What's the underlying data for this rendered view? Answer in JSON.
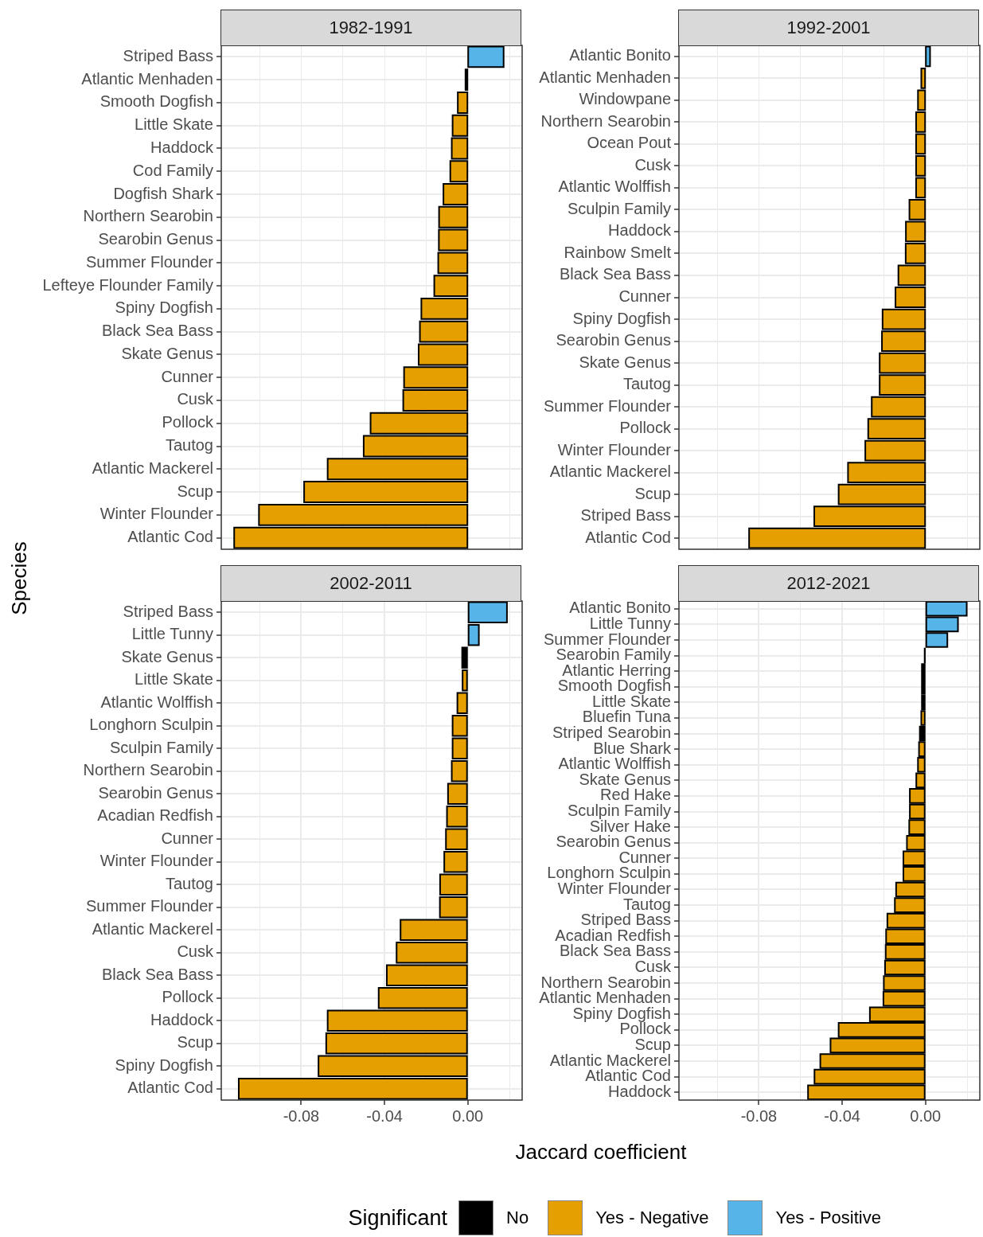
{
  "chart_data": [
    {
      "type": "bar",
      "orientation": "horizontal",
      "title": "1982-1991",
      "ylabel": "Species",
      "grid": true,
      "tick_labels": "y",
      "xlim": [
        -0.1184,
        0.0261
      ],
      "xticks": [
        {
          "value": -0.1,
          "label": null
        },
        {
          "value": -0.08,
          "label": null
        },
        {
          "value": -0.06,
          "label": null
        },
        {
          "value": -0.04,
          "label": null
        },
        {
          "value": -0.02,
          "label": null
        },
        {
          "value": 0,
          "label": null
        },
        {
          "value": 0.02,
          "label": null
        }
      ],
      "categories": [
        "Striped Bass",
        "Atlantic Menhaden",
        "Smooth Dogfish",
        "Little Skate",
        "Haddock",
        "Cod Family",
        "Dogfish Shark",
        "Northern Searobin",
        "Searobin Genus",
        "Summer Flounder",
        "Lefteye Flounder Family",
        "Spiny Dogfish",
        "Black Sea Bass",
        "Skate Genus",
        "Cunner",
        "Cusk",
        "Pollock",
        "Tautog",
        "Atlantic Mackerel",
        "Scup",
        "Winter Flounder",
        "Atlantic Cod"
      ],
      "series": [
        {
          "color": "#000000",
          "values": [
            null,
            -0.0011,
            null,
            null,
            null,
            null,
            null,
            null,
            null,
            null,
            null,
            null,
            null,
            null,
            null,
            null,
            null,
            null,
            null,
            null,
            null,
            null
          ]
        },
        {
          "color": "#e69f00",
          "values": [
            null,
            null,
            -0.0048,
            -0.0073,
            -0.0077,
            -0.0084,
            -0.0117,
            -0.0138,
            -0.0139,
            -0.0142,
            -0.0161,
            -0.0223,
            -0.023,
            -0.0236,
            -0.0306,
            -0.031,
            -0.0467,
            -0.05,
            -0.0673,
            -0.0786,
            -0.1003,
            -0.1122
          ]
        },
        {
          "color": "#56b4e9",
          "values": [
            0.0172,
            null,
            null,
            null,
            null,
            null,
            null,
            null,
            null,
            null,
            null,
            null,
            null,
            null,
            null,
            null,
            null,
            null,
            null,
            null,
            null,
            null
          ]
        }
      ]
    },
    {
      "type": "bar",
      "orientation": "horizontal",
      "title": "1992-2001",
      "grid": true,
      "tick_labels": "y",
      "xlim": [
        -0.1184,
        0.0261
      ],
      "xticks": [
        {
          "value": -0.1,
          "label": null
        },
        {
          "value": -0.08,
          "label": null
        },
        {
          "value": -0.06,
          "label": null
        },
        {
          "value": -0.04,
          "label": null
        },
        {
          "value": -0.02,
          "label": null
        },
        {
          "value": 0,
          "label": null
        },
        {
          "value": 0.02,
          "label": null
        }
      ],
      "categories": [
        "Atlantic Bonito",
        "Atlantic Menhaden",
        "Windowpane",
        "Northern Searobin",
        "Ocean Pout",
        "Cusk",
        "Atlantic Wolffish",
        "Sculpin Family",
        "Haddock",
        "Rainbow Smelt",
        "Black Sea Bass",
        "Cunner",
        "Spiny Dogfish",
        "Searobin Genus",
        "Skate Genus",
        "Tautog",
        "Summer Flounder",
        "Pollock",
        "Winter Flounder",
        "Atlantic Mackerel",
        "Scup",
        "Striped Bass",
        "Atlantic Cod"
      ],
      "series": [
        {
          "color": "#e69f00",
          "values": [
            null,
            -0.002,
            -0.0036,
            -0.0045,
            -0.0045,
            -0.0045,
            -0.0045,
            -0.0077,
            -0.0094,
            -0.0095,
            -0.013,
            -0.0144,
            -0.0206,
            -0.0209,
            -0.022,
            -0.022,
            -0.0258,
            -0.0275,
            -0.0289,
            -0.0372,
            -0.0417,
            -0.0534,
            -0.0847
          ]
        },
        {
          "color": "#56b4e9",
          "values": [
            0.0022,
            null,
            null,
            null,
            null,
            null,
            null,
            null,
            null,
            null,
            null,
            null,
            null,
            null,
            null,
            null,
            null,
            null,
            null,
            null,
            null,
            null,
            null
          ]
        }
      ]
    },
    {
      "type": "bar",
      "orientation": "horizontal",
      "title": "2002-2011",
      "grid": true,
      "xlim": [
        -0.1184,
        0.0261
      ],
      "xticks": [
        {
          "value": -0.1,
          "label": null
        },
        {
          "value": -0.08,
          "label": "-0.08"
        },
        {
          "value": -0.06,
          "label": null
        },
        {
          "value": -0.04,
          "label": "-0.04"
        },
        {
          "value": -0.02,
          "label": null
        },
        {
          "value": 0,
          "label": "0.00"
        },
        {
          "value": 0.02,
          "label": null
        }
      ],
      "categories": [
        "Striped Bass",
        "Little Tunny",
        "Skate Genus",
        "Little Skate",
        "Atlantic Wolffish",
        "Longhorn Sculpin",
        "Sculpin Family",
        "Northern Searobin",
        "Searobin Genus",
        "Acadian Redfish",
        "Cunner",
        "Winter Flounder",
        "Tautog",
        "Summer Flounder",
        "Atlantic Mackerel",
        "Cusk",
        "Black Sea Bass",
        "Pollock",
        "Haddock",
        "Scup",
        "Spiny Dogfish",
        "Atlantic Cod"
      ],
      "series": [
        {
          "color": "#000000",
          "values": [
            null,
            null,
            -0.0027,
            null,
            null,
            null,
            null,
            null,
            null,
            null,
            null,
            null,
            null,
            null,
            null,
            null,
            null,
            null,
            null,
            null,
            null,
            null
          ]
        },
        {
          "color": "#e69f00",
          "values": [
            null,
            null,
            null,
            -0.0025,
            -0.005,
            -0.0073,
            -0.0073,
            -0.0077,
            -0.0095,
            -0.01,
            -0.0105,
            -0.0113,
            -0.0133,
            -0.0134,
            -0.0323,
            -0.0342,
            -0.0389,
            -0.0428,
            -0.0673,
            -0.068,
            -0.0717,
            -0.11
          ]
        },
        {
          "color": "#56b4e9",
          "values": [
            0.0188,
            0.0053,
            null,
            null,
            null,
            null,
            null,
            null,
            null,
            null,
            null,
            null,
            null,
            null,
            null,
            null,
            null,
            null,
            null,
            null,
            null,
            null
          ]
        }
      ]
    },
    {
      "type": "bar",
      "orientation": "horizontal",
      "title": "2012-2021",
      "xlabel": "Jaccard coefficient",
      "legend": "bottom",
      "legend_title": "Significant",
      "grid": true,
      "xlim": [
        -0.1184,
        0.0261
      ],
      "xticks": [
        {
          "value": -0.1,
          "label": null
        },
        {
          "value": -0.08,
          "label": "-0.08"
        },
        {
          "value": -0.06,
          "label": null
        },
        {
          "value": -0.04,
          "label": "-0.04"
        },
        {
          "value": -0.02,
          "label": null
        },
        {
          "value": 0,
          "label": "0.00"
        },
        {
          "value": 0.02,
          "label": null
        }
      ],
      "categories": [
        "Atlantic Bonito",
        "Little Tunny",
        "Summer Flounder",
        "Searobin Family",
        "Atlantic Herring",
        "Smooth Dogfish",
        "Little Skate",
        "Bluefin Tuna",
        "Striped Searobin",
        "Blue Shark",
        "Atlantic Wolffish",
        "Skate Genus",
        "Red Hake",
        "Sculpin Family",
        "Silver Hake",
        "Searobin Genus",
        "Cunner",
        "Longhorn Sculpin",
        "Winter Flounder",
        "Tautog",
        "Striped Bass",
        "Acadian Redfish",
        "Black Sea Bass",
        "Cusk",
        "Northern Searobin",
        "Atlantic Menhaden",
        "Spiny Dogfish",
        "Pollock",
        "Scup",
        "Atlantic Mackerel",
        "Atlantic Cod",
        "Haddock"
      ],
      "series": [
        {
          "name": "No",
          "color": "#000000",
          "values": [
            null,
            null,
            null,
            -0.0003,
            -0.0017,
            -0.0017,
            -0.0017,
            null,
            -0.0027,
            null,
            null,
            null,
            null,
            null,
            null,
            null,
            null,
            null,
            null,
            null,
            null,
            null,
            null,
            null,
            null,
            null,
            null,
            null,
            null,
            null,
            null,
            null
          ]
        },
        {
          "name": "Yes - Negative",
          "color": "#e69f00",
          "values": [
            null,
            null,
            null,
            null,
            null,
            null,
            null,
            -0.002,
            null,
            -0.0031,
            -0.0036,
            -0.0044,
            -0.0075,
            -0.0075,
            -0.0078,
            -0.0089,
            -0.0106,
            -0.0106,
            -0.0141,
            -0.0147,
            -0.0183,
            -0.0189,
            -0.0191,
            -0.0194,
            -0.02,
            -0.0202,
            -0.0267,
            -0.0417,
            -0.0456,
            -0.0505,
            -0.0533,
            -0.0564
          ]
        },
        {
          "name": "Yes - Positive",
          "color": "#56b4e9",
          "values": [
            0.0198,
            0.0156,
            0.0105,
            null,
            null,
            null,
            null,
            null,
            null,
            null,
            null,
            null,
            null,
            null,
            null,
            null,
            null,
            null,
            null,
            null,
            null,
            null,
            null,
            null,
            null,
            null,
            null,
            null,
            null,
            null,
            null,
            null
          ]
        }
      ]
    }
  ]
}
